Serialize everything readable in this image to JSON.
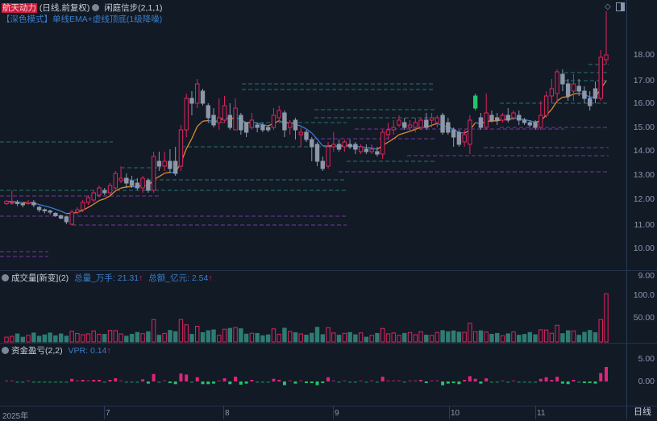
{
  "header": {
    "stock_name": "航天动力",
    "period_info": "(日线,前复权)",
    "indicator": "闲庭信步(2,1,1)",
    "mode": "【深色模式】单线EMA+虚线顶底(1级降噪)"
  },
  "volume_pane": {
    "title": "成交量[新变](2)",
    "total_vol_label": "总量_万手:",
    "total_vol_value": "21.31",
    "total_amt_label": "总额_亿元:",
    "total_amt_value": "2.54",
    "up_arrow": "↑"
  },
  "vpr_pane": {
    "title": "资金盈亏(2,2)",
    "vpr_label": "VPR:",
    "vpr_value": "0.14",
    "up_arrow": "↑"
  },
  "price_axis": [
    "18.00",
    "17.00",
    "16.00",
    "15.00",
    "14.00",
    "13.00",
    "12.00",
    "11.00",
    "10.00"
  ],
  "volume_axis": [
    "9.00",
    "100.0",
    "50.00"
  ],
  "vpr_axis": [
    "5.00",
    "0.00"
  ],
  "x_axis": [
    "2025年",
    "7",
    "8",
    "9",
    "10",
    "11"
  ],
  "period_button": "日线",
  "colors": {
    "background": "#121a26",
    "up": "#e0245e",
    "down": "#8c98a8",
    "ema_rising": "#e08a2c",
    "ema_falling": "#3a7bd5",
    "support_line": "#9b3fc8",
    "resistance_line": "#2f8f8a",
    "green_bar": "#21c46a"
  },
  "chart_data": {
    "type": "candlestick",
    "title": "航天动力 (日线,前复权)",
    "ylim": [
      9.6,
      19.2
    ],
    "x_months": [
      "2025-06",
      "7",
      "8",
      "9",
      "10",
      "11"
    ],
    "candles": [
      [
        11.85,
        11.95,
        11.8,
        12.0
      ],
      [
        11.9,
        11.9,
        11.8,
        12.4
      ],
      [
        11.9,
        11.85,
        11.75,
        12.0
      ],
      [
        11.85,
        11.8,
        11.7,
        11.9
      ],
      [
        11.85,
        11.9,
        11.8,
        12.0
      ],
      [
        11.9,
        11.8,
        11.7,
        12.0
      ],
      [
        11.7,
        11.6,
        11.5,
        11.75
      ],
      [
        11.6,
        11.55,
        11.45,
        11.65
      ],
      [
        11.55,
        11.5,
        11.4,
        11.6
      ],
      [
        11.45,
        11.35,
        11.3,
        11.5
      ],
      [
        11.35,
        11.25,
        11.2,
        11.4
      ],
      [
        11.3,
        11.1,
        11.0,
        11.35
      ],
      [
        11.0,
        11.5,
        10.95,
        11.6
      ],
      [
        11.5,
        11.6,
        11.4,
        11.7
      ],
      [
        11.6,
        11.9,
        11.5,
        12.0
      ],
      [
        11.9,
        12.1,
        11.8,
        12.2
      ],
      [
        12.0,
        12.3,
        11.9,
        12.4
      ],
      [
        12.2,
        12.5,
        12.1,
        12.6
      ],
      [
        12.4,
        12.3,
        12.2,
        12.5
      ],
      [
        12.3,
        12.6,
        12.2,
        12.7
      ],
      [
        12.5,
        13.1,
        12.4,
        13.2
      ],
      [
        12.8,
        12.9,
        12.7,
        13.4
      ],
      [
        12.9,
        12.7,
        12.5,
        13.1
      ],
      [
        12.8,
        12.6,
        12.5,
        13.0
      ],
      [
        12.7,
        12.5,
        12.4,
        12.9
      ],
      [
        12.5,
        12.9,
        12.3,
        13.0
      ],
      [
        12.8,
        12.4,
        12.3,
        12.9
      ],
      [
        12.4,
        13.8,
        12.3,
        14.0
      ],
      [
        13.6,
        13.4,
        13.2,
        14.0
      ],
      [
        13.4,
        13.6,
        13.2,
        14.0
      ],
      [
        13.6,
        13.3,
        13.1,
        14.1
      ],
      [
        13.6,
        13.1,
        13.0,
        14.2
      ],
      [
        13.4,
        14.9,
        13.2,
        15.1
      ],
      [
        14.9,
        16.2,
        14.6,
        16.4
      ],
      [
        16.2,
        16.0,
        15.5,
        16.5
      ],
      [
        16.0,
        16.8,
        15.8,
        17.0
      ],
      [
        16.5,
        16.0,
        15.9,
        16.6
      ],
      [
        15.9,
        15.4,
        15.2,
        16.0
      ],
      [
        15.5,
        15.1,
        15.0,
        15.8
      ],
      [
        15.2,
        15.4,
        14.9,
        16.2
      ],
      [
        15.3,
        15.9,
        15.2,
        16.3
      ],
      [
        15.5,
        15.0,
        14.9,
        16.0
      ],
      [
        14.9,
        15.8,
        14.9,
        16.2
      ],
      [
        15.5,
        14.9,
        14.7,
        15.6
      ],
      [
        15.2,
        14.8,
        14.6,
        15.2
      ],
      [
        15.0,
        15.3,
        14.9,
        15.6
      ],
      [
        15.1,
        15.0,
        14.8,
        15.2
      ],
      [
        15.1,
        14.9,
        14.8,
        15.2
      ],
      [
        15.0,
        14.9,
        14.8,
        15.1
      ],
      [
        15.0,
        15.5,
        14.9,
        15.8
      ],
      [
        15.4,
        15.7,
        15.2,
        15.9
      ],
      [
        15.6,
        14.9,
        14.6,
        15.7
      ],
      [
        15.0,
        15.2,
        14.7,
        15.3
      ],
      [
        15.3,
        14.9,
        14.5,
        15.4
      ],
      [
        14.7,
        14.8,
        14.2,
        15.0
      ],
      [
        14.8,
        14.5,
        14.4,
        14.9
      ],
      [
        14.5,
        14.2,
        13.6,
        14.6
      ],
      [
        14.3,
        13.6,
        13.4,
        14.4
      ],
      [
        13.6,
        13.3,
        13.2,
        13.8
      ],
      [
        13.4,
        14.2,
        13.3,
        14.4
      ],
      [
        14.2,
        14.3,
        14.0,
        14.8
      ],
      [
        14.3,
        14.1,
        14.0,
        14.5
      ],
      [
        14.2,
        14.4,
        14.0,
        14.5
      ],
      [
        14.3,
        14.2,
        14.1,
        14.5
      ],
      [
        14.3,
        14.1,
        13.9,
        14.4
      ],
      [
        14.0,
        14.2,
        13.9,
        14.3
      ],
      [
        14.1,
        14.0,
        13.9,
        14.3
      ],
      [
        14.0,
        14.1,
        13.9,
        14.3
      ],
      [
        14.0,
        13.9,
        13.8,
        14.2
      ],
      [
        13.9,
        14.8,
        13.7,
        14.9
      ],
      [
        14.7,
        14.9,
        14.5,
        15.2
      ],
      [
        14.9,
        15.0,
        14.7,
        15.3
      ],
      [
        15.1,
        15.3,
        15.0,
        15.5
      ],
      [
        15.2,
        15.0,
        14.9,
        15.4
      ],
      [
        15.0,
        15.1,
        14.8,
        15.3
      ],
      [
        15.0,
        15.2,
        14.8,
        15.4
      ],
      [
        15.0,
        15.3,
        14.9,
        15.4
      ],
      [
        15.3,
        15.0,
        14.9,
        15.6
      ],
      [
        15.3,
        15.4,
        15.0,
        15.6
      ],
      [
        15.2,
        15.4,
        15.0,
        15.5
      ],
      [
        15.5,
        14.8,
        14.7,
        15.6
      ],
      [
        15.2,
        14.8,
        14.7,
        15.4
      ],
      [
        14.9,
        14.6,
        14.2,
        15.0
      ],
      [
        14.8,
        14.3,
        14.2,
        14.9
      ],
      [
        14.4,
        14.7,
        14.2,
        14.9
      ],
      [
        14.3,
        15.3,
        13.9,
        15.5
      ],
      [
        15.8,
        16.3,
        15.7,
        16.4
      ],
      [
        15.4,
        15.0,
        14.9,
        15.6
      ],
      [
        15.0,
        15.6,
        14.9,
        16.4
      ],
      [
        15.5,
        15.3,
        15.2,
        15.7
      ],
      [
        15.4,
        15.3,
        15.1,
        15.6
      ],
      [
        15.3,
        15.5,
        15.2,
        15.6
      ],
      [
        15.5,
        15.3,
        15.2,
        15.8
      ],
      [
        15.4,
        15.6,
        15.3,
        15.7
      ],
      [
        15.5,
        15.3,
        15.1,
        15.7
      ],
      [
        15.3,
        15.2,
        15.1,
        15.4
      ],
      [
        15.2,
        15.1,
        15.0,
        15.3
      ],
      [
        15.2,
        15.0,
        14.9,
        15.3
      ],
      [
        15.0,
        15.5,
        14.9,
        16.1
      ],
      [
        15.5,
        16.3,
        15.4,
        16.5
      ],
      [
        16.3,
        16.6,
        16.0,
        17.0
      ],
      [
        16.4,
        17.3,
        16.0,
        17.4
      ],
      [
        17.2,
        16.8,
        16.5,
        17.4
      ],
      [
        16.8,
        16.3,
        16.1,
        17.0
      ],
      [
        16.5,
        16.8,
        16.1,
        17.2
      ],
      [
        16.7,
        16.5,
        16.3,
        17.0
      ],
      [
        16.5,
        16.2,
        16.0,
        16.7
      ],
      [
        16.2,
        15.9,
        15.7,
        16.5
      ],
      [
        16.6,
        16.2,
        16.0,
        16.9
      ],
      [
        16.2,
        17.9,
        16.1,
        18.2
      ],
      [
        17.8,
        18.0,
        17.6,
        19.8
      ]
    ],
    "ema_note": "single EMA, orange when rising, blue when falling",
    "volume": {
      "ylabel_top": "9.00 (×万)",
      "ticks": [
        100.0,
        50.0
      ],
      "note": "latest bar ~100, typical ~10-50"
    },
    "vpr": {
      "ticks": [
        5.0,
        0.0
      ],
      "latest": 0.14
    }
  }
}
